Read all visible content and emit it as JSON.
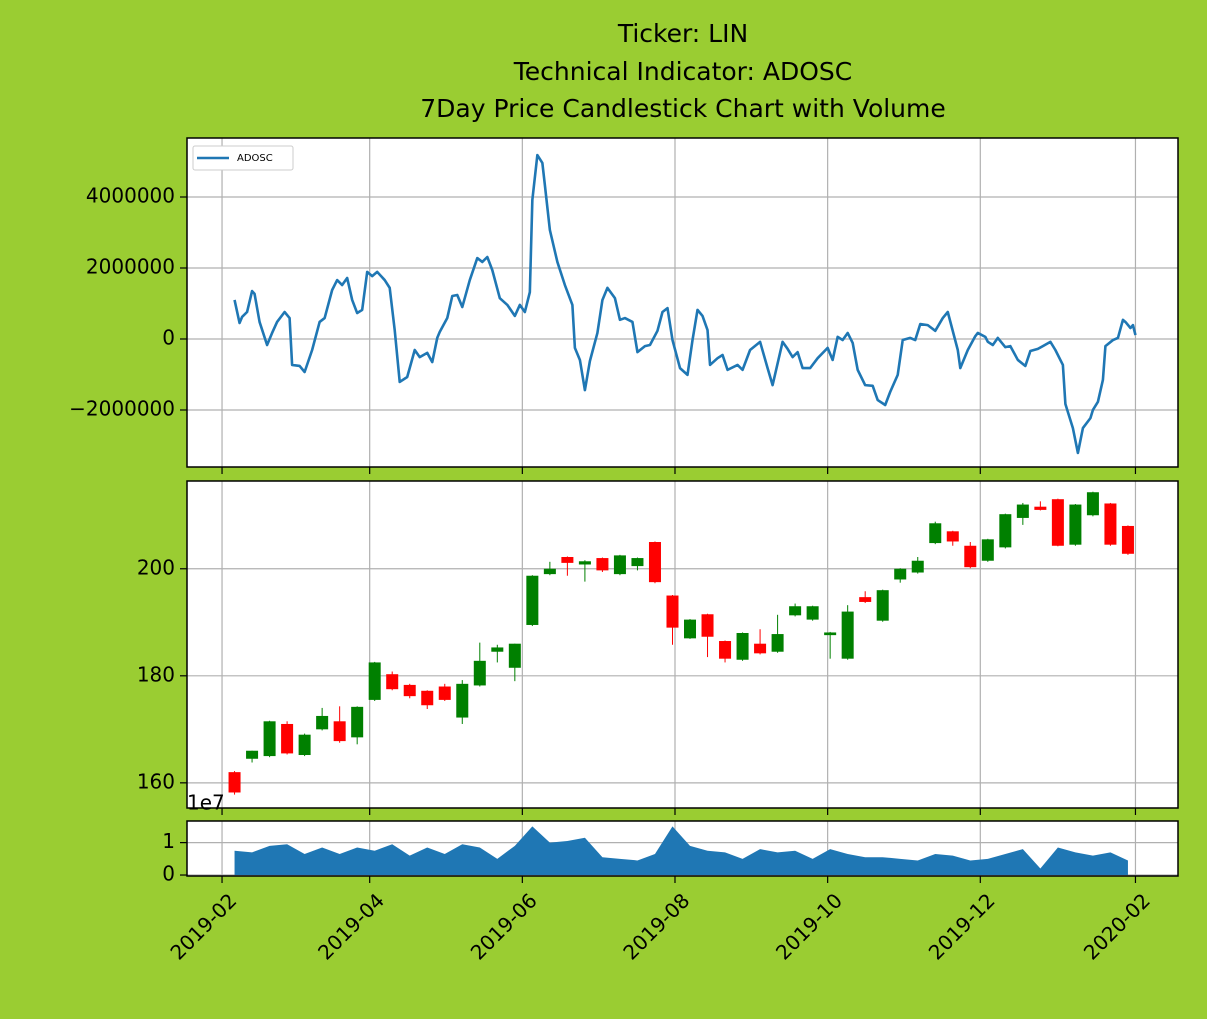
{
  "chart_data": [
    {
      "type": "line",
      "title": [
        "Ticker: LIN",
        "Technical Indicator: ADOSC",
        "7Day Price Candlestick Chart with Volume"
      ],
      "x": [
        17933,
        17935,
        17936,
        17938,
        17940,
        17941,
        17943,
        17946,
        17948,
        17950,
        17953,
        17955,
        17956,
        17959,
        17961,
        17964,
        17967,
        17969,
        17972,
        17974,
        17976,
        17978,
        17980,
        17982,
        17984,
        17986,
        17988,
        17990,
        17993,
        17995,
        17997,
        17999,
        18002,
        18005,
        18007,
        18010,
        18012,
        18014,
        18015,
        18018,
        18020,
        18022,
        18024,
        18027,
        18030,
        18032,
        18034,
        18036,
        18039,
        18042,
        18045,
        18047,
        18049,
        18051,
        18052,
        18054,
        18056,
        18057,
        18059,
        18062,
        18065,
        18068,
        18069,
        18071,
        18073,
        18075,
        18078,
        18080,
        18082,
        18085,
        18087,
        18089,
        18092,
        18094,
        18097,
        18099,
        18102,
        18104,
        18106,
        18108,
        18111,
        18114,
        18116,
        18118,
        18120,
        18122,
        18123,
        18126,
        18128,
        18130,
        18134,
        18136,
        18139,
        18143,
        18146,
        18148,
        18152,
        18154,
        18156,
        18158,
        18160,
        18163,
        18166,
        18170,
        18172,
        18174,
        18176,
        18178,
        18180,
        18182,
        18185,
        18188,
        18190,
        18193,
        18195,
        18198,
        18200,
        18203,
        18205,
        18207,
        18210,
        18213,
        18216,
        18218,
        18222,
        18223,
        18226,
        18229,
        18230,
        18233,
        18234,
        18236,
        18238,
        18241,
        18243,
        18246,
        18249,
        18251,
        18254,
        18256,
        18259,
        18261,
        18264,
        18265,
        18268,
        18270,
        18272,
        18275,
        18276,
        18278,
        18280,
        18281,
        18284,
        18286,
        18288,
        18289,
        18291,
        18292,
        18293
      ],
      "series": [
        {
          "name": "ADOSC",
          "color": "#1f77b4",
          "values": [
            1100000,
            450000,
            620000,
            760000,
            1350000,
            1270000,
            480000,
            -170000,
            170000,
            480000,
            760000,
            590000,
            -730000,
            -760000,
            -930000,
            -310000,
            480000,
            590000,
            1380000,
            1660000,
            1520000,
            1720000,
            1100000,
            730000,
            820000,
            1890000,
            1770000,
            1890000,
            1660000,
            1440000,
            250000,
            -1210000,
            -1070000,
            -310000,
            -510000,
            -390000,
            -650000,
            30000,
            200000,
            590000,
            1210000,
            1240000,
            900000,
            1660000,
            2280000,
            2170000,
            2310000,
            1940000,
            1150000,
            960000,
            650000,
            960000,
            760000,
            1320000,
            3920000,
            5180000,
            4960000,
            4340000,
            3070000,
            2170000,
            1520000,
            960000,
            -250000,
            -590000,
            -1440000,
            -620000,
            170000,
            1100000,
            1440000,
            1150000,
            540000,
            590000,
            480000,
            -370000,
            -200000,
            -170000,
            230000,
            760000,
            870000,
            -30000,
            -820000,
            -1010000,
            -30000,
            820000,
            650000,
            250000,
            -730000,
            -540000,
            -450000,
            -870000,
            -730000,
            -870000,
            -310000,
            -80000,
            -820000,
            -1300000,
            -80000,
            -280000,
            -510000,
            -370000,
            -820000,
            -820000,
            -540000,
            -250000,
            -590000,
            60000,
            -30000,
            170000,
            -110000,
            -870000,
            -1300000,
            -1320000,
            -1720000,
            -1860000,
            -1490000,
            -1010000,
            -30000,
            30000,
            -30000,
            420000,
            390000,
            230000,
            590000,
            760000,
            -310000,
            -820000,
            -310000,
            80000,
            170000,
            60000,
            -80000,
            -170000,
            30000,
            -230000,
            -200000,
            -590000,
            -760000,
            -340000,
            -280000,
            -200000,
            -80000,
            -310000,
            -730000,
            -1830000,
            -2510000,
            -3210000,
            -2510000,
            -2230000,
            -2000000,
            -1770000,
            -1150000,
            -200000,
            -30000,
            30000,
            540000,
            480000,
            310000,
            390000,
            110000
          ]
        }
      ],
      "ylim": [
        -3606000,
        5662000
      ],
      "yticks": [
        {
          "value": -2000000,
          "label": "−2000000"
        },
        0,
        2000000,
        4000000
      ],
      "grid": true,
      "legend": "upper left"
    },
    {
      "type": "candlestick",
      "x": [
        17933,
        17940,
        17947,
        17954,
        17961,
        17968,
        17975,
        17982,
        17989,
        17996,
        18003,
        18010,
        18017,
        18024,
        18031,
        18038,
        18045,
        18052,
        18059,
        18066,
        18073,
        18080,
        18087,
        18094,
        18101,
        18108,
        18115,
        18122,
        18129,
        18136,
        18143,
        18150,
        18157,
        18164,
        18171,
        18178,
        18185,
        18192,
        18199,
        18206,
        18213,
        18220,
        18227,
        18234,
        18241,
        18248,
        18255,
        18262,
        18269,
        18276,
        18283,
        18290
      ],
      "open": [
        162,
        164.5,
        165,
        171,
        165.2,
        170,
        171.5,
        168.5,
        175.5,
        180.3,
        178.3,
        177.2,
        178,
        172.2,
        178.2,
        184.5,
        181.5,
        189.5,
        199,
        202.2,
        200.8,
        202,
        199,
        200.5,
        205,
        195,
        187,
        191.5,
        186.5,
        183,
        186,
        184.5,
        191.3,
        190.5,
        187.6,
        183.2,
        194.7,
        190.3,
        198,
        199.3,
        204.8,
        207,
        204.3,
        201.5,
        204,
        209.5,
        211.6,
        213,
        204.5,
        210,
        212.2,
        208
      ],
      "high": [
        162.2,
        166,
        171.6,
        171.5,
        169.2,
        174,
        174.3,
        174.3,
        182.6,
        180.8,
        178.5,
        177.3,
        178.5,
        179.2,
        186.2,
        185.8,
        186,
        198.8,
        201.3,
        202.3,
        201.6,
        202.1,
        202.6,
        202.1,
        205.1,
        195.1,
        190.6,
        191.6,
        186.6,
        188.1,
        188.7,
        191.4,
        193.5,
        193.1,
        188.2,
        193.2,
        195.8,
        196.1,
        200.1,
        202.2,
        208.8,
        207.1,
        205,
        205.6,
        210.3,
        212.3,
        212.6,
        213.1,
        212.1,
        214.4,
        212.3,
        208.1
      ],
      "low": [
        157.8,
        163.8,
        164.8,
        165.3,
        165,
        169.8,
        167.5,
        167.2,
        175.3,
        177.3,
        175.8,
        173.8,
        175.3,
        171,
        178,
        182.5,
        179,
        189.3,
        198.8,
        198.7,
        197.6,
        199.4,
        198.8,
        199.7,
        197.3,
        185.8,
        186.9,
        183.5,
        182.5,
        182.8,
        184,
        184.3,
        191.1,
        190.3,
        183.2,
        183,
        193.6,
        190.1,
        197.4,
        199.1,
        204.6,
        204.3,
        200.1,
        201.3,
        203.8,
        208.2,
        210.9,
        204.2,
        204.3,
        209.8,
        204.3,
        202.6
      ],
      "close": [
        158.2,
        166,
        171.5,
        165.5,
        169,
        172.5,
        167.8,
        174.2,
        182.5,
        177.5,
        176.2,
        174.5,
        175.5,
        178.5,
        182.8,
        185.3,
        186,
        198.7,
        200,
        201.1,
        201.4,
        199.7,
        202.5,
        202,
        197.5,
        189,
        190.5,
        187.3,
        183.2,
        188,
        184.2,
        187.8,
        193,
        193,
        188.1,
        192,
        193.8,
        196,
        200,
        201.5,
        208.5,
        205.1,
        200.3,
        205.5,
        210.2,
        212,
        211,
        204.3,
        212,
        214.3,
        204.5,
        202.8
      ],
      "up_color": "green",
      "down_color": "red",
      "ylim": [
        155.3,
        216.4
      ],
      "yticks": [
        160,
        180,
        200
      ],
      "grid": true
    },
    {
      "type": "area",
      "x": [
        17933,
        17940,
        17947,
        17954,
        17961,
        17968,
        17975,
        17982,
        17989,
        17996,
        18003,
        18010,
        18017,
        18024,
        18031,
        18038,
        18045,
        18052,
        18059,
        18066,
        18073,
        18080,
        18087,
        18094,
        18101,
        18108,
        18115,
        18122,
        18129,
        18136,
        18143,
        18150,
        18157,
        18164,
        18171,
        18178,
        18185,
        18192,
        18199,
        18206,
        18213,
        18220,
        18227,
        18234,
        18241,
        18248,
        18255,
        18262,
        18269,
        18276,
        18283,
        18290
      ],
      "values": [
        7500000,
        7000000,
        9000000,
        9500000,
        6500000,
        8500000,
        6500000,
        8500000,
        7500000,
        9500000,
        6000000,
        8500000,
        6500000,
        9500000,
        8500000,
        5000000,
        9000000,
        15000000,
        10000000,
        10500000,
        11500000,
        5500000,
        5000000,
        4500000,
        6500000,
        15000000,
        9000000,
        7500000,
        7000000,
        5000000,
        8000000,
        7000000,
        7500000,
        5000000,
        8000000,
        6500000,
        5500000,
        5500000,
        5000000,
        4500000,
        6500000,
        6000000,
        4500000,
        5000000,
        6500000,
        8000000,
        2000000,
        8500000,
        7000000,
        6000000,
        7000000,
        4500000
      ],
      "color": "#1f77b4",
      "ylim": [
        -300000,
        16670000
      ],
      "yticks": [
        0,
        {
          "value": 10000000,
          "label": "1"
        }
      ],
      "offset_text": "1e7",
      "xlim": [
        17914,
        18310
      ],
      "xticks": [
        {
          "value": 17928,
          "label": "2019-02"
        },
        {
          "value": 17987,
          "label": "2019-04"
        },
        {
          "value": 18048,
          "label": "2019-06"
        },
        {
          "value": 18109,
          "label": "2019-08"
        },
        {
          "value": 18170,
          "label": "2019-10"
        },
        {
          "value": 18231,
          "label": "2019-12"
        },
        {
          "value": 18293,
          "label": "2020-02"
        }
      ],
      "grid": true
    }
  ]
}
